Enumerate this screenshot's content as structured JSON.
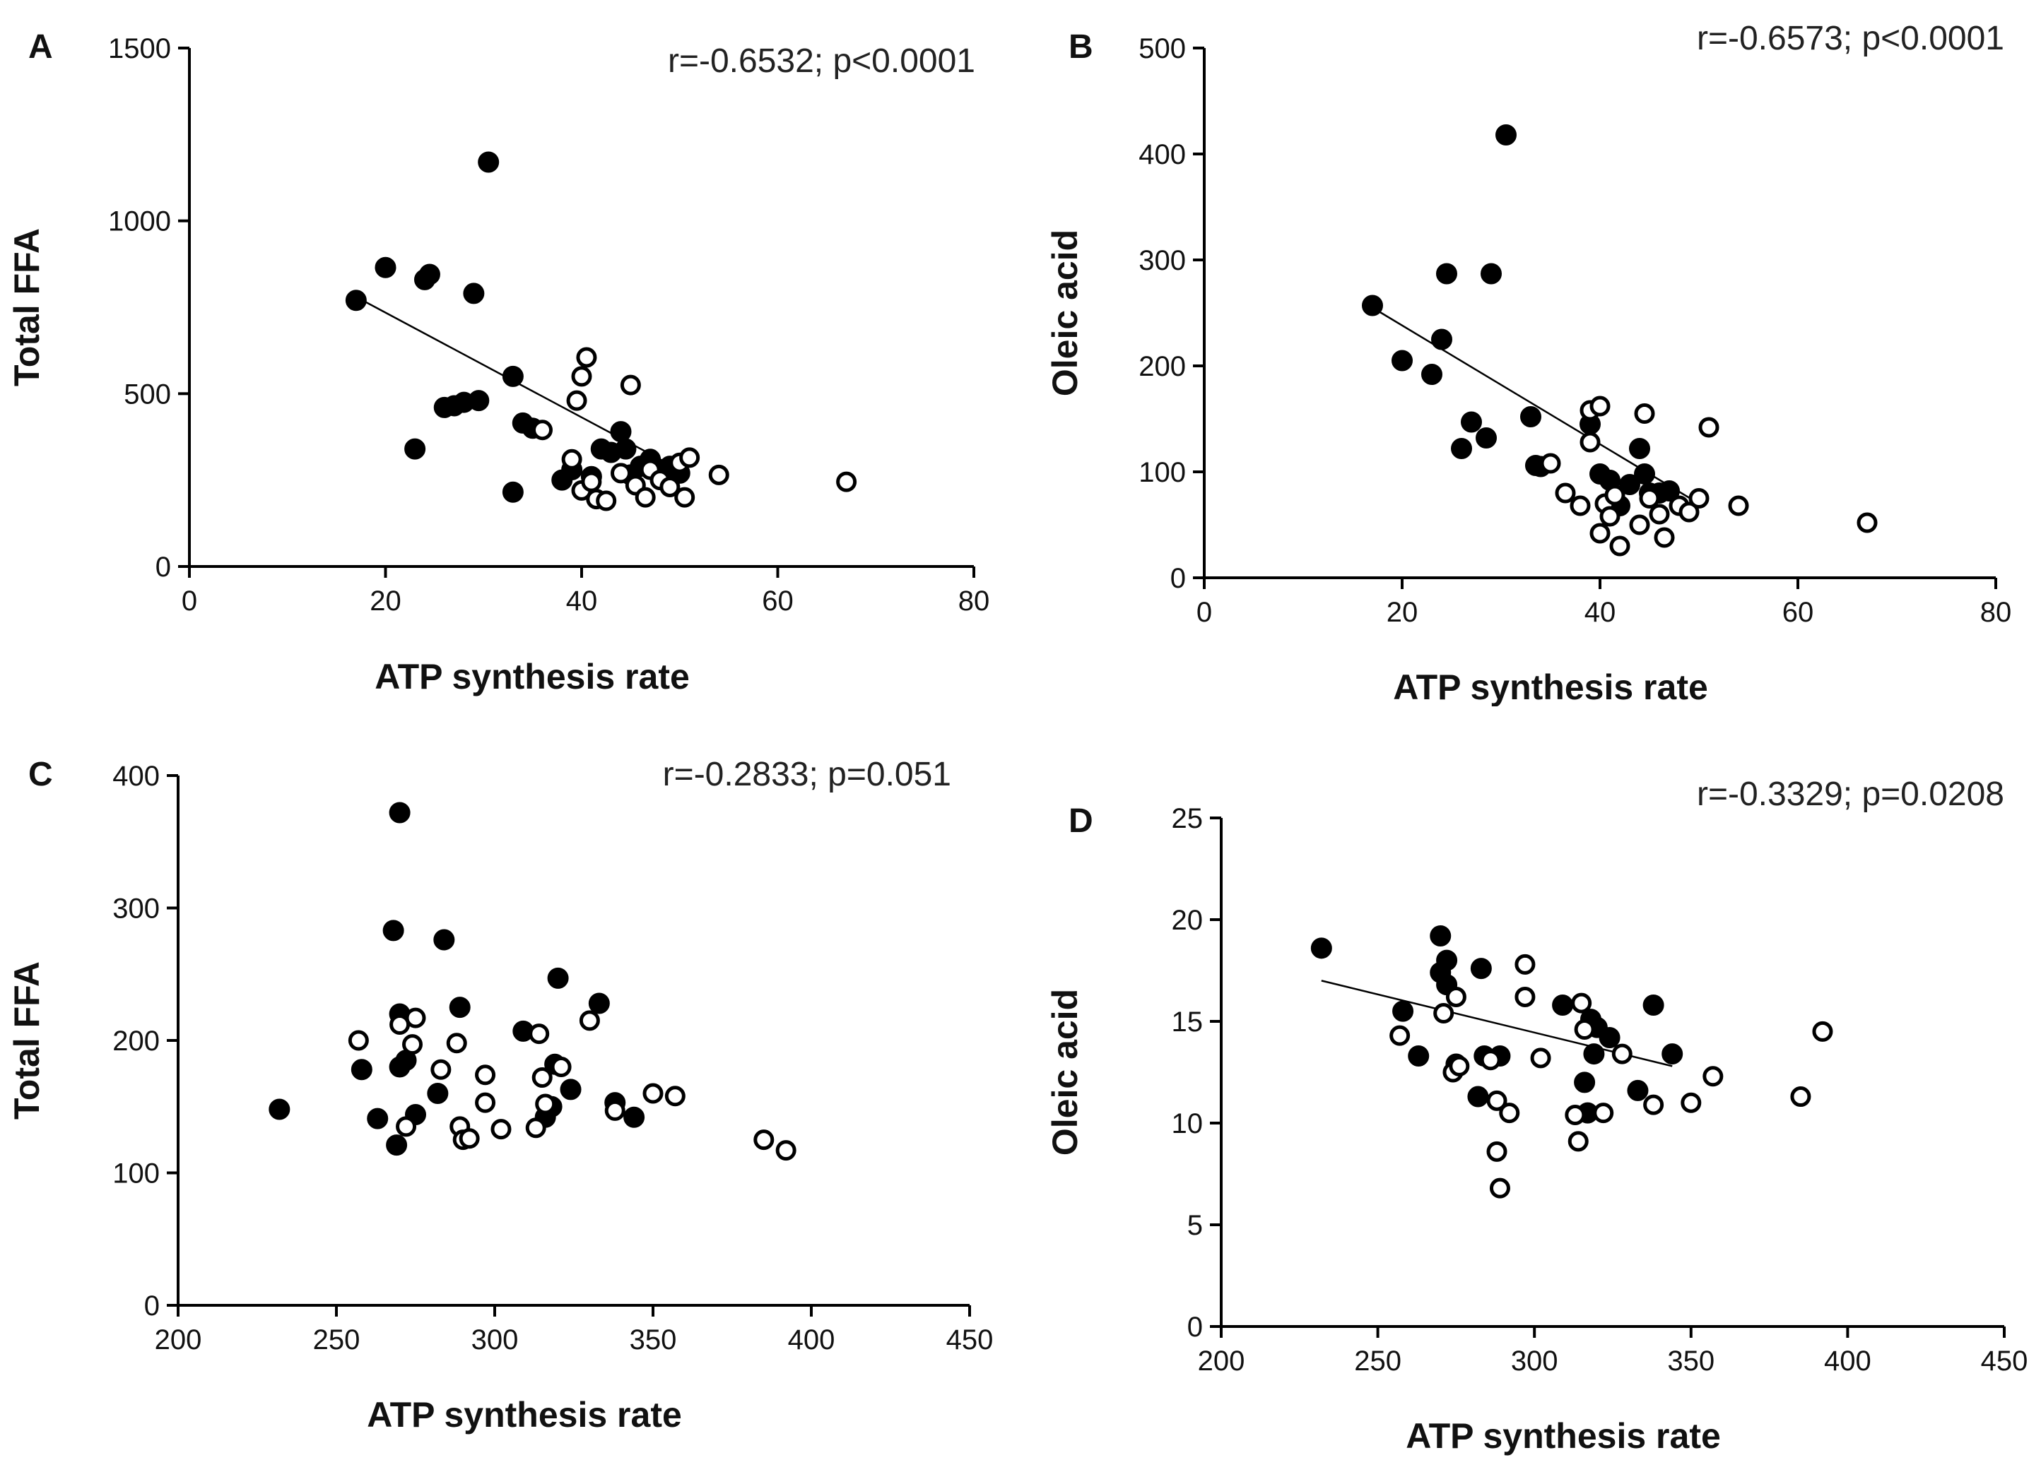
{
  "chart_data": [
    {
      "panel": "A",
      "type": "scatter",
      "xlabel": "ATP synthesis rate",
      "ylabel": "Total FFA",
      "annotation": "r=-0.6532; p<0.0001",
      "xlim": [
        0,
        80
      ],
      "ylim": [
        0,
        1500
      ],
      "xticks": [
        "0",
        "20",
        "40",
        "60",
        "80"
      ],
      "yticks": [
        "0",
        "500",
        "1000",
        "1500"
      ],
      "fit_line": {
        "x": [
          17,
          50
        ],
        "y": [
          780,
          280
        ]
      },
      "series": [
        {
          "name": "filled",
          "marker": "filled-circle",
          "color": "#000000",
          "points": [
            [
              17,
              770
            ],
            [
              20,
              865
            ],
            [
              23,
              340
            ],
            [
              24,
              830
            ],
            [
              24.5,
              845
            ],
            [
              26,
              460
            ],
            [
              27,
              465
            ],
            [
              28,
              475
            ],
            [
              29,
              790
            ],
            [
              29.5,
              480
            ],
            [
              30.5,
              1170
            ],
            [
              33,
              215
            ],
            [
              33,
              550
            ],
            [
              34,
              415
            ],
            [
              35,
              400
            ],
            [
              38,
              250
            ],
            [
              39,
              280
            ],
            [
              41,
              260
            ],
            [
              42,
              340
            ],
            [
              43,
              330
            ],
            [
              44,
              390
            ],
            [
              44.5,
              340
            ],
            [
              45,
              265
            ],
            [
              46,
              290
            ],
            [
              47,
              310
            ],
            [
              48,
              280
            ],
            [
              49,
              290
            ],
            [
              50,
              270
            ]
          ]
        },
        {
          "name": "open",
          "marker": "open-circle",
          "color": "#000000",
          "points": [
            [
              36,
              395
            ],
            [
              39,
              310
            ],
            [
              39.5,
              480
            ],
            [
              40,
              550
            ],
            [
              40.5,
              605
            ],
            [
              40,
              220
            ],
            [
              41,
              245
            ],
            [
              41.5,
              195
            ],
            [
              42.5,
              190
            ],
            [
              44,
              270
            ],
            [
              45,
              525
            ],
            [
              45.5,
              235
            ],
            [
              46.5,
              200
            ],
            [
              47,
              280
            ],
            [
              48,
              250
            ],
            [
              49,
              230
            ],
            [
              50,
              300
            ],
            [
              50.5,
              200
            ],
            [
              51,
              315
            ],
            [
              54,
              265
            ],
            [
              67,
              245
            ]
          ]
        }
      ]
    },
    {
      "panel": "B",
      "type": "scatter",
      "xlabel": "ATP synthesis rate",
      "ylabel": "Oleic acid",
      "annotation": "r=-0.6573; p<0.0001",
      "xlim": [
        0,
        80
      ],
      "ylim": [
        0,
        500
      ],
      "xticks": [
        "0",
        "20",
        "40",
        "60",
        "80"
      ],
      "yticks": [
        "0",
        "100",
        "200",
        "300",
        "400",
        "500"
      ],
      "fit_line": {
        "x": [
          17,
          50
        ],
        "y": [
          255,
          70
        ]
      },
      "series": [
        {
          "name": "filled",
          "marker": "filled-circle",
          "color": "#000000",
          "points": [
            [
              17,
              257
            ],
            [
              20,
              205
            ],
            [
              23,
              192
            ],
            [
              24,
              225
            ],
            [
              24.5,
              287
            ],
            [
              26,
              122
            ],
            [
              27,
              147
            ],
            [
              28.5,
              132
            ],
            [
              29,
              287
            ],
            [
              30.5,
              418
            ],
            [
              33,
              152
            ],
            [
              33.5,
              106
            ],
            [
              34,
              105
            ],
            [
              39,
              145
            ],
            [
              40,
              98
            ],
            [
              41,
              92
            ],
            [
              42,
              68
            ],
            [
              43,
              88
            ],
            [
              44,
              122
            ],
            [
              44.5,
              98
            ],
            [
              45,
              80
            ],
            [
              46,
              80
            ],
            [
              47,
              82
            ]
          ]
        },
        {
          "name": "open",
          "marker": "open-circle",
          "color": "#000000",
          "points": [
            [
              35,
              108
            ],
            [
              36.5,
              80
            ],
            [
              38,
              68
            ],
            [
              39,
              128
            ],
            [
              39,
              158
            ],
            [
              40,
              162
            ],
            [
              40.5,
              70
            ],
            [
              40,
              42
            ],
            [
              41,
              58
            ],
            [
              41.5,
              78
            ],
            [
              42,
              30
            ],
            [
              44,
              50
            ],
            [
              44.5,
              155
            ],
            [
              45,
              75
            ],
            [
              46,
              60
            ],
            [
              46.5,
              38
            ],
            [
              48,
              68
            ],
            [
              49,
              62
            ],
            [
              50,
              75
            ],
            [
              51,
              142
            ],
            [
              54,
              68
            ],
            [
              67,
              52
            ]
          ]
        }
      ]
    },
    {
      "panel": "C",
      "type": "scatter",
      "xlabel": "ATP synthesis rate",
      "ylabel": "Total FFA",
      "annotation": "r=-0.2833; p=0.051",
      "xlim": [
        200,
        450
      ],
      "ylim": [
        0,
        400
      ],
      "xticks": [
        "200",
        "250",
        "300",
        "350",
        "400",
        "450"
      ],
      "yticks": [
        "0",
        "100",
        "200",
        "300",
        "400"
      ],
      "fit_line": null,
      "series": [
        {
          "name": "filled",
          "marker": "filled-circle",
          "color": "#000000",
          "points": [
            [
              232,
              148
            ],
            [
              258,
              178
            ],
            [
              263,
              141
            ],
            [
              268,
              283
            ],
            [
              269,
              121
            ],
            [
              270,
              372
            ],
            [
              270,
              220
            ],
            [
              270,
              180
            ],
            [
              272,
              185
            ],
            [
              275,
              144
            ],
            [
              282,
              160
            ],
            [
              284,
              276
            ],
            [
              289,
              225
            ],
            [
              309,
              207
            ],
            [
              316,
              142
            ],
            [
              318,
              150
            ],
            [
              319,
              182
            ],
            [
              320,
              247
            ],
            [
              324,
              163
            ],
            [
              333,
              228
            ],
            [
              338,
              153
            ],
            [
              344,
              142
            ]
          ]
        },
        {
          "name": "open",
          "marker": "open-circle",
          "color": "#000000",
          "points": [
            [
              257,
              200
            ],
            [
              270,
              212
            ],
            [
              272,
              135
            ],
            [
              274,
              197
            ],
            [
              275,
              217
            ],
            [
              283,
              178
            ],
            [
              288,
              198
            ],
            [
              289,
              135
            ],
            [
              290,
              125
            ],
            [
              292,
              126
            ],
            [
              297,
              174
            ],
            [
              297,
              153
            ],
            [
              302,
              133
            ],
            [
              313,
              134
            ],
            [
              314,
              205
            ],
            [
              315,
              172
            ],
            [
              316,
              152
            ],
            [
              321,
              180
            ],
            [
              330,
              215
            ],
            [
              338,
              147
            ],
            [
              350,
              160
            ],
            [
              357,
              158
            ],
            [
              385,
              125
            ],
            [
              392,
              117
            ]
          ]
        }
      ]
    },
    {
      "panel": "D",
      "type": "scatter",
      "xlabel": "ATP synthesis rate",
      "ylabel": "Oleic acid",
      "annotation": "r=-0.3329; p=0.0208",
      "xlim": [
        200,
        450
      ],
      "ylim": [
        0,
        25
      ],
      "xticks": [
        "200",
        "250",
        "300",
        "350",
        "400",
        "450"
      ],
      "yticks": [
        "0",
        "5",
        "10",
        "15",
        "20",
        "25"
      ],
      "fit_line": {
        "x": [
          232,
          344
        ],
        "y": [
          17.0,
          12.8
        ]
      },
      "series": [
        {
          "name": "filled",
          "marker": "filled-circle",
          "color": "#000000",
          "points": [
            [
              232,
              18.6
            ],
            [
              258,
              15.5
            ],
            [
              263,
              13.3
            ],
            [
              270,
              19.2
            ],
            [
              270,
              17.4
            ],
            [
              272,
              18.0
            ],
            [
              272,
              16.8
            ],
            [
              275,
              12.9
            ],
            [
              282,
              11.3
            ],
            [
              283,
              17.6
            ],
            [
              284,
              13.3
            ],
            [
              289,
              13.3
            ],
            [
              309,
              15.8
            ],
            [
              316,
              12.0
            ],
            [
              317,
              10.5
            ],
            [
              318,
              15.1
            ],
            [
              319,
              13.4
            ],
            [
              320,
              14.7
            ],
            [
              324,
              14.2
            ],
            [
              333,
              11.6
            ],
            [
              338,
              15.8
            ],
            [
              344,
              13.4
            ]
          ]
        },
        {
          "name": "open",
          "marker": "open-circle",
          "color": "#000000",
          "points": [
            [
              257,
              14.3
            ],
            [
              271,
              15.4
            ],
            [
              274,
              12.5
            ],
            [
              275,
              16.2
            ],
            [
              276,
              12.8
            ],
            [
              286,
              13.1
            ],
            [
              288,
              11.1
            ],
            [
              288,
              8.6
            ],
            [
              289,
              6.8
            ],
            [
              292,
              10.5
            ],
            [
              297,
              17.8
            ],
            [
              297,
              16.2
            ],
            [
              302,
              13.2
            ],
            [
              313,
              10.4
            ],
            [
              314,
              9.1
            ],
            [
              315,
              15.9
            ],
            [
              316,
              14.6
            ],
            [
              322,
              10.5
            ],
            [
              328,
              13.4
            ],
            [
              338,
              10.9
            ],
            [
              350,
              11.0
            ],
            [
              357,
              12.3
            ],
            [
              385,
              11.3
            ],
            [
              392,
              14.5
            ]
          ]
        }
      ]
    }
  ]
}
